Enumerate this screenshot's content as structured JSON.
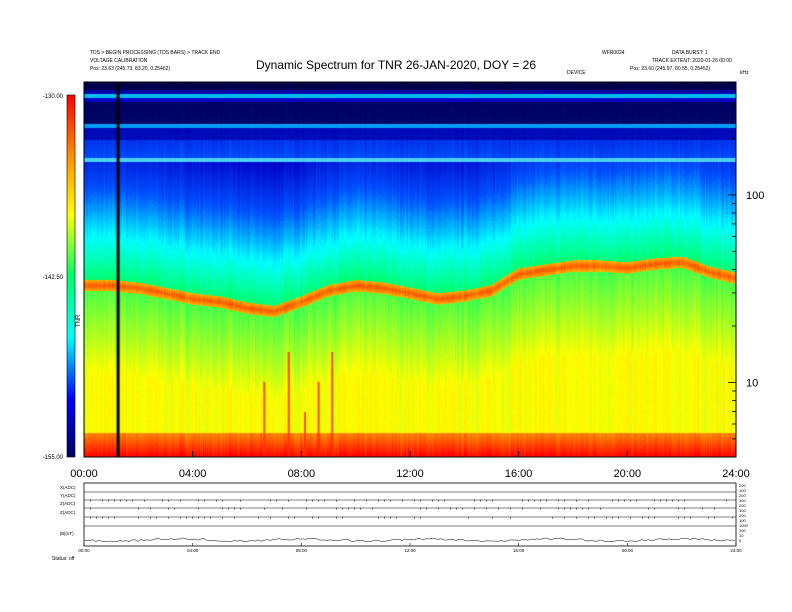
{
  "header": {
    "line_left_1": "TDS > BEGIN PROCESSING (TDS BARS) > TRACK END",
    "line_left_2": "VOLTAGE CALIBRATION",
    "line_left_3": "Pos: 23.63 (245.73, 83.20, 0.25462)",
    "line_mid_right": "WFR0024",
    "line_right_1": "DATA BURST: 1",
    "line_right_2": "TRACK EXTENT: 2020-01-26 00:00",
    "line_right_3": "Pos: 23.60 (245.97, 80.55, 0.25452)",
    "center_small": "DEVICE",
    "corner_small": "kHz"
  },
  "chart_data": {
    "type": "heatmap",
    "title": "Dynamic Spectrum for TNR 26-JAN-2020, DOY = 26",
    "x_ticks": [
      "00:00",
      "04:00",
      "08:00",
      "12:00",
      "16:00",
      "20:00",
      "24:00"
    ],
    "x_range_hours": [
      0,
      24
    ],
    "y_scale": "log",
    "y_unit": "kHz",
    "y_range": [
      4,
      400
    ],
    "y_ticks": [
      10,
      100
    ],
    "colorbar": {
      "min": -155.0,
      "mid": -142.5,
      "max": -130.0,
      "ticks": [
        "-130.00",
        "-142.50",
        "-155.00"
      ],
      "label": "TNR",
      "colors": [
        "#000066",
        "#0000ff",
        "#00ffff",
        "#00ff66",
        "#ffff00",
        "#ff8800",
        "#ff0000"
      ]
    },
    "data_gap_line_hour": 1.2,
    "features": {
      "emission_band_upper_khz": [
        33,
        33,
        32,
        30,
        28,
        27,
        25,
        24,
        27,
        31,
        33,
        32,
        30,
        28,
        29,
        31,
        38,
        40,
        42,
        42,
        41,
        43,
        44,
        39,
        36
      ],
      "emission_band_hours": [
        0,
        1,
        2,
        3,
        4,
        5,
        6,
        7,
        8,
        9,
        10,
        11,
        12,
        13,
        14,
        15,
        16,
        17,
        18,
        19,
        20,
        21,
        22,
        23,
        24
      ],
      "saturation_hours": [
        0,
        0.2,
        0.4,
        0.6,
        1.2,
        2.6,
        5.5,
        6.6,
        7.5,
        8.1,
        8.6,
        9.1,
        10.4,
        11.2,
        12.0,
        13.5,
        15.6,
        16.9,
        18.0,
        18.5,
        19.3,
        20.6,
        22.0,
        22.7,
        23.4
      ]
    }
  },
  "bottom_panel": {
    "row_labels": [
      "X(ADC)",
      "Y(ADC)",
      "Z(ADC)",
      "Z(ADC)",
      "|B|(nT)"
    ],
    "right_ticks": [
      "200",
      "100",
      "200",
      "100",
      "200",
      "100",
      "200",
      "100",
      "1000",
      "100",
      "10",
      "0"
    ],
    "x_ticks": [
      "00:00",
      "04:00",
      "08:00",
      "12:00",
      "16:00",
      "20:00",
      "24:00"
    ],
    "footer_label": "Status:  off"
  }
}
